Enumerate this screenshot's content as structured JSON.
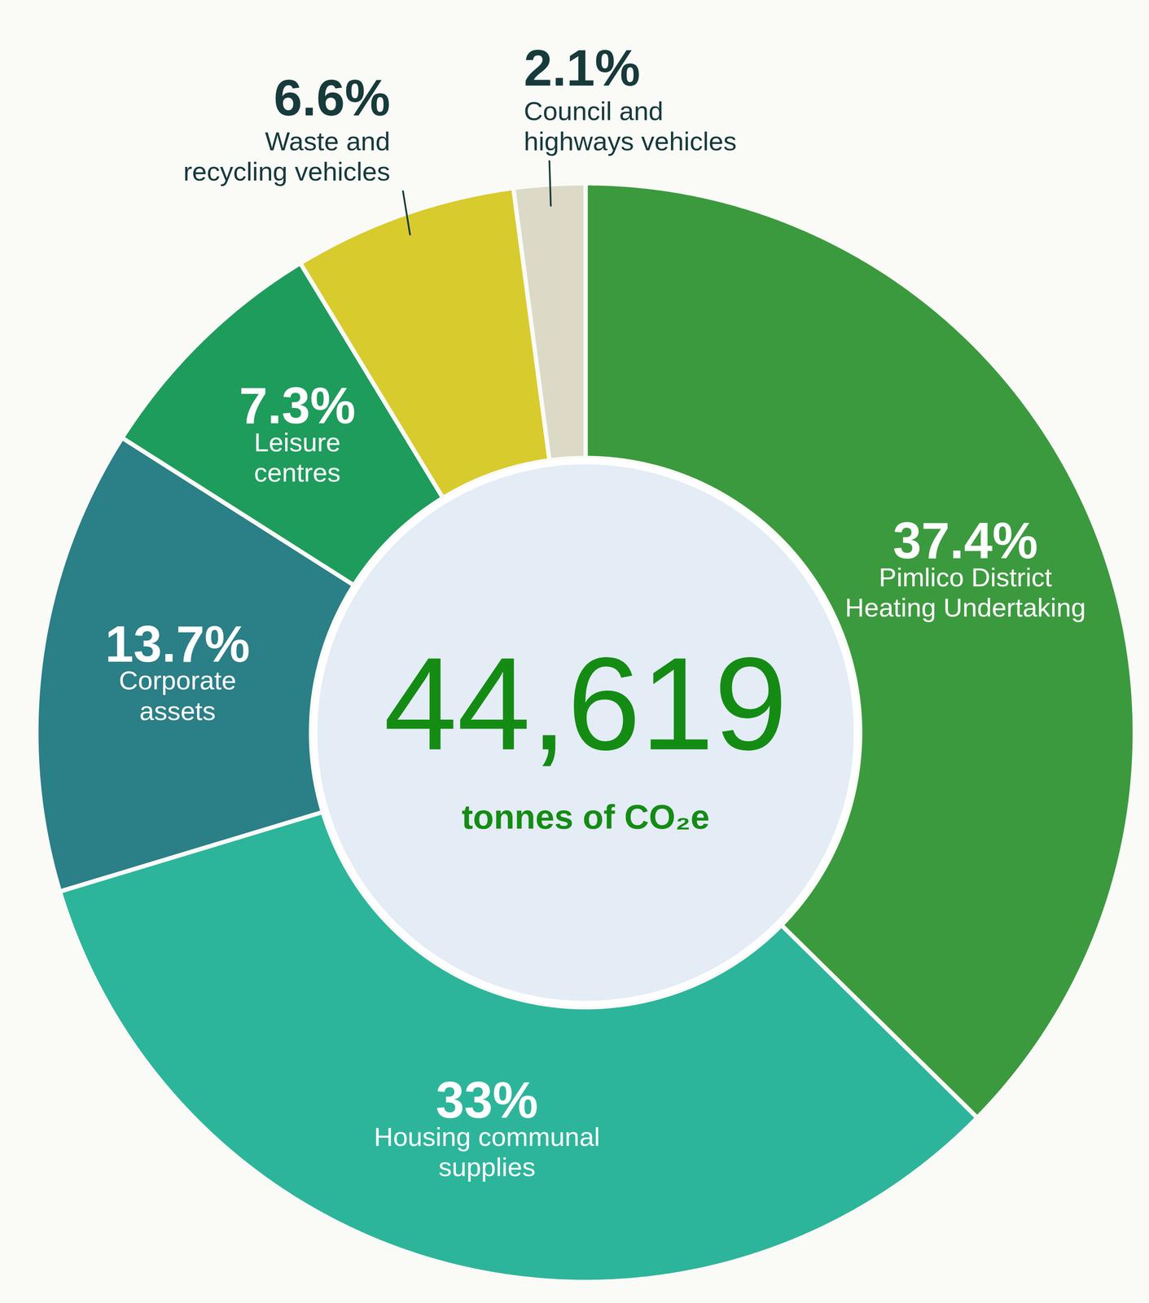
{
  "chart_data": {
    "type": "donut",
    "categories": [
      "Pimlico District Heating Undertaking",
      "Housing communal supplies",
      "Corporate assets",
      "Leisure centres",
      "Waste and recycling vehicles",
      "Council and highways vehicles"
    ],
    "values": [
      37.4,
      33,
      13.7,
      7.3,
      6.6,
      2.1
    ],
    "value_labels": [
      "37.4%",
      "33%",
      "13.7%",
      "7.3%",
      "6.6%",
      "2.1%"
    ],
    "colors": [
      "#3c9a3e",
      "#2db59b",
      "#2b7f86",
      "#1e9c5c",
      "#d8cb2e",
      "#dcd9c6"
    ],
    "data_labels": true,
    "total": {
      "value": 44619,
      "label": "44,619"
    },
    "total_label": "tonnes of CO₂e"
  }
}
